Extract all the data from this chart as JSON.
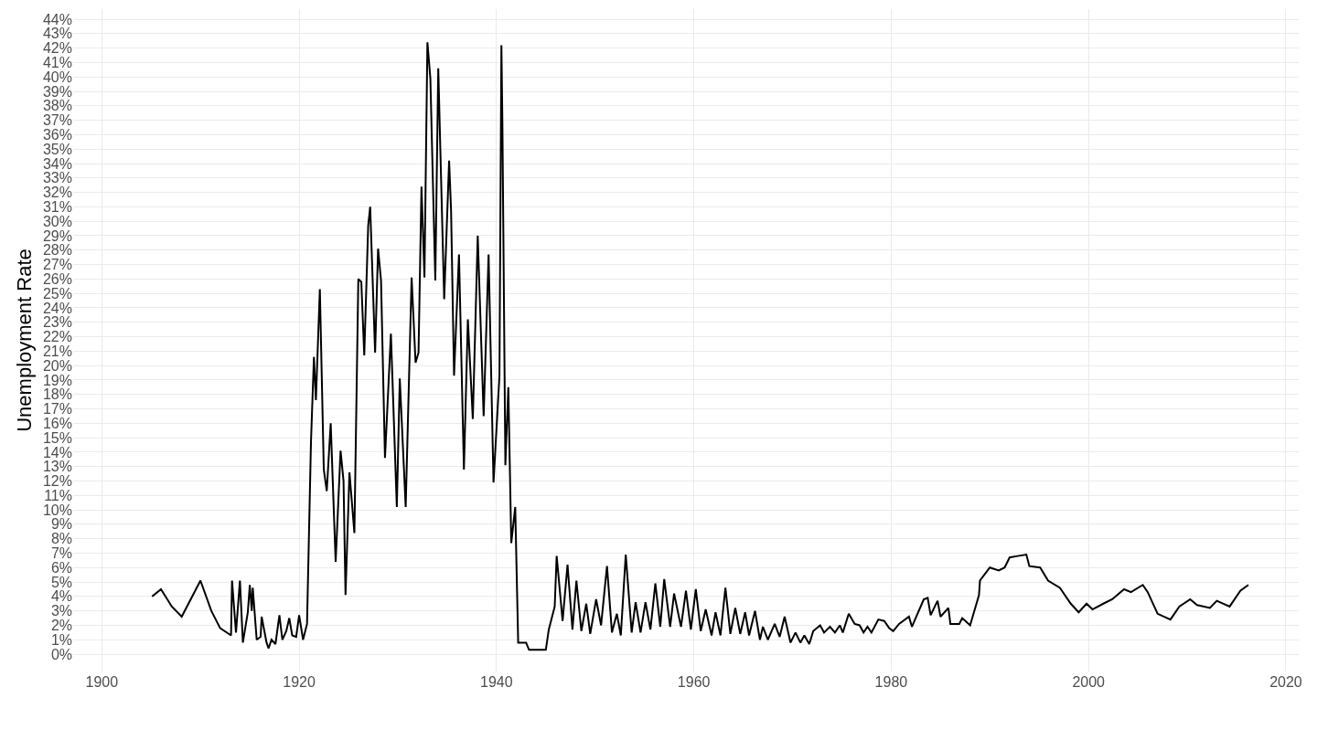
{
  "chart_data": {
    "type": "line",
    "ylabel": "Unemployment Rate",
    "grid": true,
    "marker": "none",
    "line_style": "solid",
    "xlim": [
      1897.1,
      2021.3
    ],
    "xticks": [
      1900,
      1920,
      1940,
      1960,
      1980,
      2000,
      2020
    ],
    "ylim": [
      -1.2,
      44.7
    ],
    "yticks": [
      {
        "value": 0,
        "label": "0%"
      },
      {
        "value": 1,
        "label": "1%"
      },
      {
        "value": 2,
        "label": "2%"
      },
      {
        "value": 3,
        "label": "3%"
      },
      {
        "value": 4,
        "label": "4%"
      },
      {
        "value": 5,
        "label": "5%"
      },
      {
        "value": 6,
        "label": "6%"
      },
      {
        "value": 7,
        "label": "7%"
      },
      {
        "value": 8,
        "label": "8%"
      },
      {
        "value": 9,
        "label": "9%"
      },
      {
        "value": 10,
        "label": "10%"
      },
      {
        "value": 11,
        "label": "11%"
      },
      {
        "value": 12,
        "label": "12%"
      },
      {
        "value": 13,
        "label": "13%"
      },
      {
        "value": 14,
        "label": "14%"
      },
      {
        "value": 15,
        "label": "15%"
      },
      {
        "value": 16,
        "label": "16%"
      },
      {
        "value": 17,
        "label": "17%"
      },
      {
        "value": 18,
        "label": "18%"
      },
      {
        "value": 19,
        "label": "19%"
      },
      {
        "value": 20,
        "label": "20%"
      },
      {
        "value": 21,
        "label": "21%"
      },
      {
        "value": 22,
        "label": "22%"
      },
      {
        "value": 23,
        "label": "23%"
      },
      {
        "value": 24,
        "label": "24%"
      },
      {
        "value": 25,
        "label": "25%"
      },
      {
        "value": 26,
        "label": "26%"
      },
      {
        "value": 27,
        "label": "27%"
      },
      {
        "value": 28,
        "label": "28%"
      },
      {
        "value": 29,
        "label": "29%"
      },
      {
        "value": 30,
        "label": "30%"
      },
      {
        "value": 31,
        "label": "31%"
      },
      {
        "value": 32,
        "label": "32%"
      },
      {
        "value": 33,
        "label": "33%"
      },
      {
        "value": 34,
        "label": "34%"
      },
      {
        "value": 35,
        "label": "35%"
      },
      {
        "value": 36,
        "label": "36%"
      },
      {
        "value": 37,
        "label": "37%"
      },
      {
        "value": 38,
        "label": "38%"
      },
      {
        "value": 39,
        "label": "39%"
      },
      {
        "value": 40,
        "label": "40%"
      },
      {
        "value": 41,
        "label": "41%"
      },
      {
        "value": 42,
        "label": "42%"
      },
      {
        "value": 43,
        "label": "43%"
      },
      {
        "value": 44,
        "label": "44%"
      }
    ],
    "series": [
      {
        "color": "#000000",
        "x": [
          1905.1,
          1906.0,
          1907.1,
          1908.1,
          1910.0,
          1911.1,
          1912.0,
          1913.1,
          1913.2,
          1913.6,
          1914.0,
          1914.3,
          1914.8,
          1915.0,
          1915.2,
          1915.3,
          1915.7,
          1916.1,
          1916.2,
          1916.7,
          1916.9,
          1917.2,
          1917.6,
          1918.0,
          1918.3,
          1918.7,
          1919.0,
          1919.3,
          1919.7,
          1920.0,
          1920.4,
          1920.8,
          1921.2,
          1921.5,
          1921.7,
          1922.1,
          1922.5,
          1922.8,
          1923.2,
          1923.7,
          1924.2,
          1924.5,
          1924.7,
          1925.1,
          1925.6,
          1926.0,
          1926.3,
          1926.6,
          1927.0,
          1927.2,
          1927.7,
          1928.0,
          1928.3,
          1928.7,
          1929.3,
          1929.9,
          1930.2,
          1930.8,
          1931.4,
          1931.8,
          1932.1,
          1932.4,
          1932.7,
          1933.0,
          1933.3,
          1933.8,
          1934.1,
          1934.7,
          1935.2,
          1935.4,
          1935.7,
          1936.2,
          1936.7,
          1937.1,
          1937.6,
          1938.1,
          1938.7,
          1939.2,
          1939.7,
          1940.3,
          1940.5,
          1940.6,
          1940.9,
          1941.2,
          1941.5,
          1941.9,
          1942.2,
          1943.0,
          1943.3,
          1945.0,
          1945.3,
          1945.9,
          1946.1,
          1946.7,
          1947.2,
          1947.7,
          1948.1,
          1948.6,
          1949.1,
          1949.5,
          1950.1,
          1950.6,
          1951.2,
          1951.7,
          1952.2,
          1952.6,
          1953.1,
          1953.7,
          1954.1,
          1954.6,
          1955.1,
          1955.6,
          1956.1,
          1956.6,
          1957.0,
          1957.6,
          1958.0,
          1958.7,
          1959.2,
          1959.7,
          1960.2,
          1960.7,
          1961.2,
          1961.8,
          1962.2,
          1962.7,
          1963.2,
          1963.7,
          1964.2,
          1964.7,
          1965.2,
          1965.6,
          1966.2,
          1966.7,
          1967.0,
          1967.5,
          1968.2,
          1968.7,
          1969.2,
          1969.8,
          1970.3,
          1970.8,
          1971.2,
          1971.7,
          1972.1,
          1972.8,
          1973.2,
          1973.8,
          1974.3,
          1974.8,
          1975.1,
          1975.7,
          1976.3,
          1976.8,
          1977.2,
          1977.6,
          1978.0,
          1978.7,
          1979.3,
          1979.8,
          1980.2,
          1980.8,
          1981.8,
          1982.1,
          1983.3,
          1983.7,
          1984.0,
          1984.7,
          1985.0,
          1985.8,
          1986.0,
          1986.9,
          1987.2,
          1988.0,
          1988.9,
          1989.0,
          1990.0,
          1990.9,
          1991.5,
          1992.0,
          1992.8,
          1993.7,
          1994.0,
          1995.1,
          1995.9,
          1997.1,
          1998.2,
          1999.0,
          1999.8,
          2000.4,
          2001.5,
          2002.4,
          2003.6,
          2004.3,
          2005.5,
          2006.0,
          2007.0,
          2008.3,
          2009.2,
          2010.3,
          2011.0,
          2012.3,
          2013.0,
          2014.3,
          2015.4,
          2016.2
        ],
        "values": [
          4.0,
          4.5,
          3.3,
          2.6,
          5.1,
          3.0,
          1.8,
          1.3,
          5.1,
          1.5,
          5.1,
          0.8,
          2.9,
          4.8,
          3.0,
          4.6,
          1.0,
          1.2,
          2.6,
          0.8,
          0.4,
          1.0,
          0.7,
          2.7,
          1.0,
          1.6,
          2.5,
          1.3,
          1.2,
          2.7,
          1.0,
          2.1,
          14.7,
          20.6,
          17.6,
          25.3,
          12.8,
          11.3,
          16.0,
          6.4,
          14.1,
          12.0,
          4.1,
          12.6,
          8.4,
          26.0,
          25.8,
          20.7,
          29.7,
          31.0,
          20.9,
          28.1,
          25.9,
          13.6,
          22.2,
          10.2,
          19.1,
          10.2,
          26.1,
          20.2,
          20.9,
          32.4,
          26.1,
          42.4,
          39.9,
          25.9,
          40.6,
          24.6,
          34.2,
          30.7,
          19.3,
          27.7,
          12.8,
          23.2,
          16.3,
          29.0,
          16.5,
          27.7,
          11.9,
          19.3,
          42.2,
          36.8,
          13.1,
          18.5,
          7.7,
          10.2,
          0.8,
          0.8,
          0.3,
          0.3,
          1.7,
          3.3,
          6.8,
          2.3,
          6.2,
          1.7,
          5.1,
          1.6,
          3.5,
          1.4,
          3.8,
          2.0,
          6.1,
          1.5,
          2.8,
          1.3,
          6.9,
          1.5,
          3.6,
          1.5,
          3.6,
          1.7,
          4.9,
          1.9,
          5.2,
          1.9,
          4.2,
          1.9,
          4.4,
          1.7,
          4.5,
          1.6,
          3.1,
          1.3,
          2.9,
          1.3,
          4.6,
          1.4,
          3.2,
          1.4,
          2.9,
          1.3,
          3.0,
          1.0,
          1.9,
          1.0,
          2.1,
          1.2,
          2.6,
          0.8,
          1.5,
          0.8,
          1.3,
          0.7,
          1.6,
          2.0,
          1.5,
          1.9,
          1.5,
          2.0,
          1.5,
          2.8,
          2.1,
          2.0,
          1.5,
          1.9,
          1.5,
          2.4,
          2.3,
          1.8,
          1.6,
          2.1,
          2.6,
          1.9,
          3.8,
          3.9,
          2.7,
          3.7,
          2.6,
          3.2,
          2.1,
          2.1,
          2.5,
          2.0,
          4.1,
          5.1,
          6.0,
          5.8,
          6.0,
          6.7,
          6.8,
          6.9,
          6.1,
          6.0,
          5.1,
          4.6,
          3.5,
          2.9,
          3.5,
          3.1,
          3.5,
          3.8,
          4.5,
          4.3,
          4.8,
          4.3,
          2.8,
          2.4,
          3.3,
          3.8,
          3.4,
          3.2,
          3.7,
          3.3,
          4.4,
          4.8
        ]
      }
    ]
  }
}
